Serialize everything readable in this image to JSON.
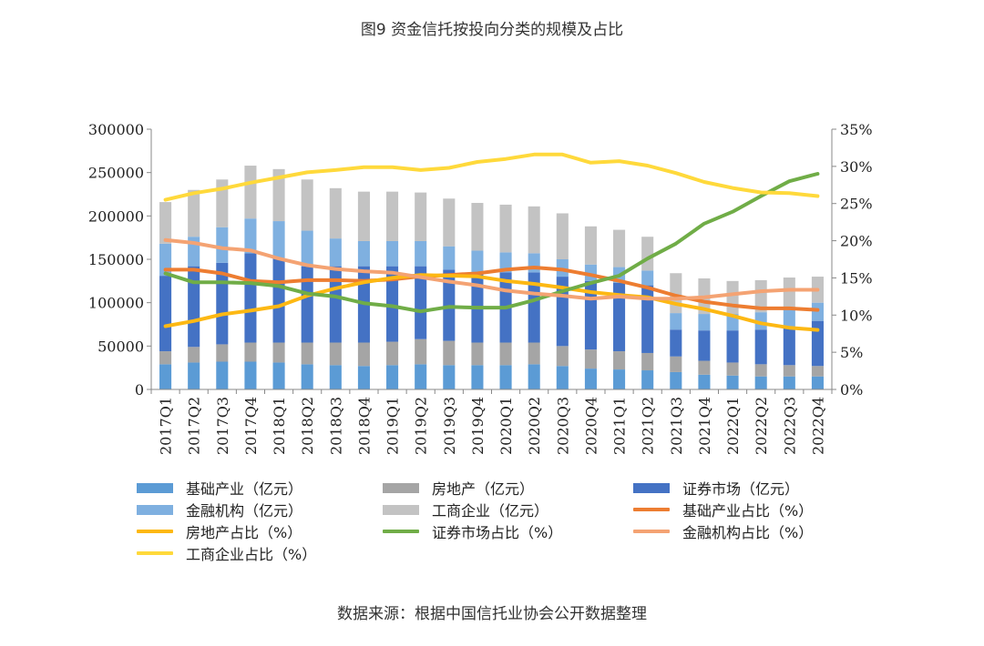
{
  "chart_data": {
    "type": "bar",
    "title": "图9 资金信托按投向分类的规模及占比",
    "categories": [
      "2017Q1",
      "2017Q2",
      "2017Q3",
      "2017Q4",
      "2018Q1",
      "2018Q2",
      "2018Q3",
      "2018Q4",
      "2019Q1",
      "2019Q2",
      "2019Q3",
      "2019Q4",
      "2020Q1",
      "2020Q2",
      "2020Q3",
      "2020Q4",
      "2021Q1",
      "2021Q2",
      "2021Q3",
      "2021Q4",
      "2022Q1",
      "2022Q2",
      "2022Q3",
      "2022Q4"
    ],
    "left_axis": {
      "ylim": [
        0,
        300000
      ],
      "ticks": [
        "0",
        "50000",
        "100000",
        "150000",
        "200000",
        "250000",
        "300000"
      ]
    },
    "right_axis": {
      "ylim": [
        0,
        35
      ],
      "ticks": [
        "0%",
        "5%",
        "10%",
        "15%",
        "20%",
        "25%",
        "30%",
        "35%"
      ]
    },
    "bar_series": [
      {
        "name": "基础产业（亿元）",
        "color": "#5b9bd5",
        "values": [
          29000,
          31000,
          32000,
          32000,
          31000,
          29000,
          28000,
          27000,
          28000,
          29000,
          28000,
          28000,
          28000,
          29000,
          27000,
          24000,
          23000,
          22000,
          20000,
          17000,
          16000,
          15000,
          15000,
          15000
        ]
      },
      {
        "name": "房地产（亿元）",
        "color": "#a5a5a5",
        "values": [
          15000,
          18000,
          20000,
          22000,
          23000,
          25000,
          26000,
          27000,
          27000,
          29000,
          28000,
          26000,
          26000,
          25000,
          23000,
          22000,
          21000,
          20000,
          18000,
          16000,
          15000,
          14000,
          13000,
          12000
        ]
      },
      {
        "name": "证券市场（亿元）",
        "color": "#4472c4",
        "values": [
          87000,
          93000,
          94000,
          103000,
          97000,
          88000,
          88000,
          88000,
          87000,
          84000,
          82000,
          81000,
          81000,
          81000,
          80000,
          79000,
          79000,
          78000,
          31000,
          35000,
          37000,
          40000,
          44000,
          52000
        ]
      },
      {
        "name": "金融机构（亿元）",
        "color": "#7fb0e0",
        "values": [
          37000,
          34000,
          41000,
          40000,
          43000,
          41000,
          32000,
          29000,
          29000,
          29000,
          27000,
          25000,
          23000,
          22000,
          20000,
          19000,
          18000,
          17000,
          19000,
          19000,
          19000,
          20000,
          21000,
          21000
        ]
      },
      {
        "name": "工商企业（亿元）",
        "color": "#c3c3c3",
        "values": [
          48000,
          54000,
          55000,
          61000,
          60000,
          59000,
          58000,
          57000,
          57000,
          56000,
          55000,
          55000,
          55000,
          54000,
          53000,
          44000,
          43000,
          39000,
          46000,
          41000,
          38000,
          37000,
          36000,
          30000
        ]
      }
    ],
    "line_series": [
      {
        "name": "基础产业占比（%）",
        "color": "#ed7d31",
        "values": [
          16.1,
          16.1,
          15.6,
          14.6,
          14.4,
          14.7,
          14.7,
          14.6,
          14.8,
          15.2,
          15.4,
          15.6,
          16.1,
          16.4,
          16.1,
          15.4,
          14.6,
          13.7,
          12.6,
          11.8,
          11.3,
          10.9,
          10.9,
          10.7
        ]
      },
      {
        "name": "房地产占比（%）",
        "color": "#fdb813",
        "values": [
          8.5,
          9.2,
          10.1,
          10.6,
          11.2,
          12.6,
          13.6,
          14.4,
          15.0,
          15.4,
          15.3,
          15.2,
          14.6,
          14.2,
          13.7,
          13.1,
          12.7,
          12.4,
          11.5,
          10.8,
          9.9,
          8.9,
          8.3,
          8.0
        ]
      },
      {
        "name": "证券市场占比（%）",
        "color": "#70ad47",
        "values": [
          15.6,
          14.4,
          14.4,
          14.3,
          13.9,
          12.9,
          12.5,
          11.6,
          11.2,
          10.5,
          11.1,
          11.0,
          11.0,
          12.0,
          13.2,
          14.3,
          15.3,
          17.6,
          19.6,
          22.3,
          23.9,
          26.0,
          28.0,
          29.0
        ]
      },
      {
        "name": "金融机构占比（%）",
        "color": "#f4a373",
        "values": [
          20.1,
          19.7,
          19.0,
          18.7,
          17.6,
          16.7,
          16.2,
          15.9,
          15.7,
          15.1,
          14.5,
          14.0,
          13.3,
          12.9,
          12.6,
          12.2,
          12.5,
          12.2,
          12.2,
          12.4,
          12.8,
          13.2,
          13.4,
          13.4
        ]
      },
      {
        "name": "工商企业占比（%）",
        "color": "#ffd93b",
        "values": [
          25.5,
          26.4,
          27.0,
          27.8,
          28.5,
          29.2,
          29.5,
          29.9,
          29.9,
          29.5,
          29.8,
          30.6,
          31.0,
          31.6,
          31.6,
          30.5,
          30.7,
          30.1,
          29.1,
          27.9,
          27.1,
          26.5,
          26.4,
          26.0
        ]
      }
    ],
    "source": "数据来源：根据中国信托业协会公开数据整理"
  }
}
